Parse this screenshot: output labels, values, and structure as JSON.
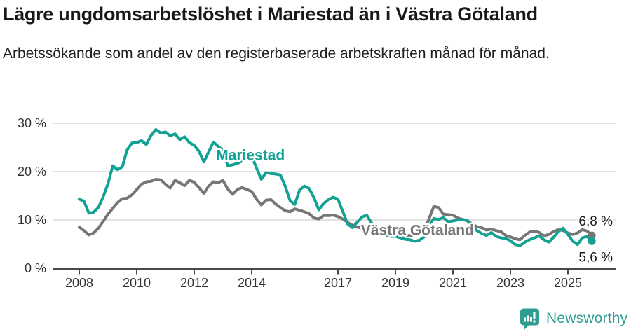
{
  "header": {
    "title": "Lägre ungdomsarbetslöshet i Mariestad än i Västra Götaland",
    "subtitle": "Arbetssökande som andel av den registerbaserade arbetskraften månad för månad."
  },
  "footer": {
    "brand": "Newsworthy"
  },
  "colors": {
    "mariestad": "#12a192",
    "vastra_gotaland": "#767676",
    "axis": "#4a4a4a",
    "gridline": "#d9d9d9",
    "tick_text": "#333333",
    "value_label": "#1a1a1a",
    "brand": "#2f9c91"
  },
  "chart_data": {
    "type": "line",
    "title": "Lägre ungdomsarbetslöshet i Mariestad än i Västra Götaland",
    "subtitle": "Arbetssökande som andel av den registerbaserade arbetskraften månad för månad.",
    "unit": "%",
    "x_start": 2008.0,
    "x_step": 0.166667,
    "x_ticks": [
      2008,
      2010,
      2012,
      2014,
      2017,
      2019,
      2021,
      2023,
      2025
    ],
    "y_ticks": [
      0,
      10,
      20,
      30
    ],
    "y_tick_suffix": " %",
    "ylim": [
      0,
      31
    ],
    "grid": true,
    "legend_position": "inline-labels",
    "series": [
      {
        "name": "Västra Götaland",
        "color": "#767676",
        "end_label": "6,8 %",
        "end_label_side": "above",
        "label_pos": {
          "x": 2017.8,
          "y": 6.9
        },
        "values": [
          8.5,
          7.8,
          6.9,
          7.3,
          8.3,
          9.7,
          11.2,
          12.4,
          13.6,
          14.4,
          14.5,
          15.2,
          16.3,
          17.4,
          17.9,
          18.0,
          18.4,
          18.3,
          17.4,
          16.6,
          18.2,
          17.7,
          17.1,
          18.2,
          17.8,
          16.7,
          15.5,
          17.0,
          17.9,
          17.7,
          18.2,
          16.4,
          15.3,
          16.3,
          16.7,
          16.3,
          15.9,
          14.3,
          13.1,
          14.1,
          14.2,
          13.3,
          12.6,
          11.9,
          11.7,
          12.3,
          12.0,
          11.7,
          11.3,
          10.4,
          10.2,
          10.9,
          10.9,
          11.0,
          10.7,
          10.2,
          9.5,
          8.9,
          8.5,
          8.3,
          8.1,
          7.8,
          7.5,
          7.3,
          7.1,
          7.0,
          6.9,
          6.9,
          6.8,
          6.8,
          6.9,
          7.1,
          7.7,
          10.2,
          12.8,
          12.6,
          11.2,
          11.1,
          11.0,
          10.4,
          10.1,
          9.8,
          9.2,
          8.6,
          8.4,
          7.9,
          8.1,
          7.8,
          7.6,
          6.8,
          6.5,
          6.1,
          5.9,
          6.8,
          7.5,
          7.7,
          7.4,
          6.7,
          7.0,
          7.6,
          8.0,
          7.8,
          7.3,
          7.0,
          7.3,
          8.0,
          7.7,
          6.8
        ]
      },
      {
        "name": "Mariestad",
        "color": "#12a192",
        "end_label": "5,6 %",
        "end_label_side": "below",
        "label_pos": {
          "x": 2012.76,
          "y": 22.4
        },
        "values": [
          14.3,
          13.9,
          11.4,
          11.6,
          12.6,
          14.8,
          17.5,
          21.2,
          20.4,
          21.0,
          24.5,
          25.9,
          26.0,
          26.4,
          25.6,
          27.5,
          28.7,
          28.0,
          28.2,
          27.4,
          27.8,
          26.6,
          27.2,
          26.0,
          25.4,
          24.2,
          22.0,
          24.0,
          26.1,
          25.2,
          24.4,
          21.2,
          21.4,
          21.7,
          22.2,
          22.8,
          23.1,
          20.8,
          18.4,
          19.8,
          19.6,
          19.5,
          19.3,
          17.0,
          14.0,
          13.2,
          16.2,
          17.0,
          16.5,
          14.6,
          12.1,
          13.4,
          14.2,
          14.7,
          14.3,
          11.8,
          9.2,
          8.4,
          9.5,
          10.6,
          11.0,
          9.4,
          8.3,
          7.4,
          6.9,
          6.6,
          6.6,
          6.3,
          6.0,
          5.9,
          5.6,
          5.8,
          6.5,
          8.8,
          10.3,
          10.1,
          10.5,
          9.6,
          9.8,
          10.0,
          10.1,
          9.9,
          8.9,
          7.8,
          7.2,
          6.8,
          7.4,
          6.6,
          6.3,
          6.2,
          5.7,
          4.9,
          4.7,
          5.4,
          5.9,
          6.3,
          6.7,
          5.9,
          5.4,
          6.4,
          7.6,
          8.3,
          7.0,
          5.6,
          4.9,
          6.3,
          6.6,
          5.6
        ]
      }
    ]
  }
}
